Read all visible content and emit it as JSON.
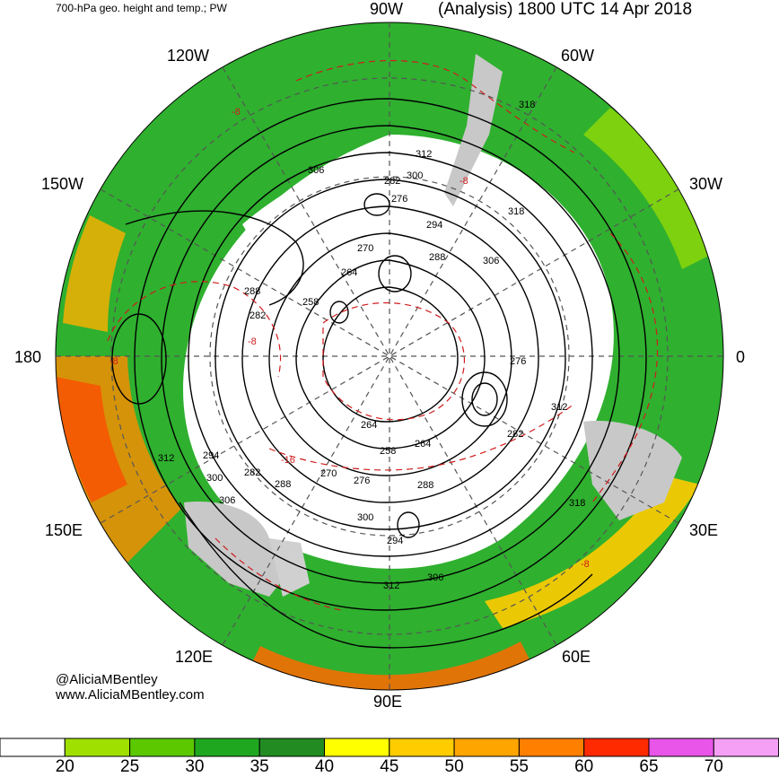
{
  "header": {
    "title_left": "700-hPa geo. height and temp.; PW",
    "title_right": "(Analysis) 1800 UTC 14 Apr 2018"
  },
  "longitude_labels": [
    "90W",
    "60W",
    "120W",
    "150W",
    "30W",
    "180",
    "0",
    "150E",
    "30E",
    "120E",
    "60E",
    "90E"
  ],
  "credits": {
    "handle": "@AliciaMBentley",
    "url": "www.AliciaMBentley.com"
  },
  "contour_labels": [
    "318",
    "306",
    "312",
    "300",
    "282",
    "276",
    "294",
    "288",
    "264",
    "270",
    "258",
    "318",
    "306",
    "288",
    "282",
    "276",
    "312",
    "282",
    "294",
    "312",
    "300",
    "306",
    "282",
    "288",
    "276",
    "270",
    "264",
    "258",
    "264",
    "288",
    "300",
    "294",
    "306",
    "312",
    "318"
  ],
  "temp_labels": [
    "-8",
    "-16",
    "-8",
    "-8",
    "-8",
    "-8"
  ],
  "colorbar": {
    "ticks": [
      "20",
      "25",
      "30",
      "35",
      "40",
      "45",
      "50",
      "55",
      "60",
      "65",
      "70"
    ],
    "colors": [
      "#ffffff",
      "#a0e000",
      "#5cc800",
      "#1fa81f",
      "#228b22",
      "#ffff00",
      "#ffcc00",
      "#ffa500",
      "#ff7f00",
      "#ff2a00",
      "#e855e8",
      "#f5a0f5"
    ]
  }
}
